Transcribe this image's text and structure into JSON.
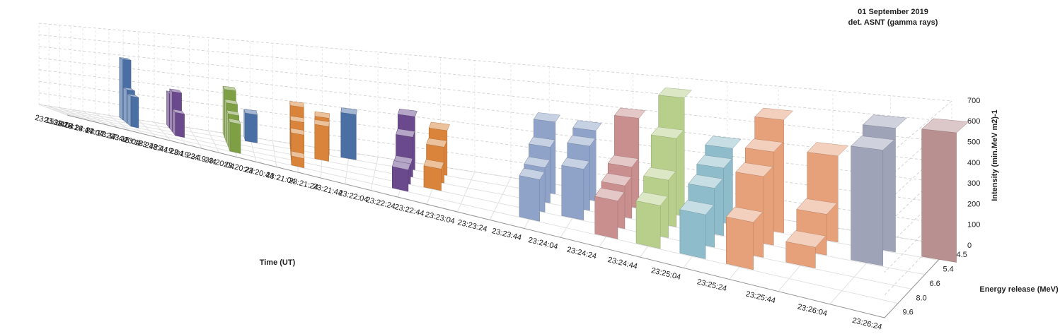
{
  "chart_data": {
    "type": "bar3d",
    "title": "01 September 2019",
    "subtitle": "det. ASNT (gamma rays)",
    "x_label": "Time (UT)",
    "y_label": "Intensity (min.MeV m2)-1",
    "z_label": "Energy release (MeV)",
    "categories": [
      "23:15:44",
      "23:16:04",
      "23:16:24",
      "23:16:44",
      "23:17:04",
      "23:17:24",
      "23:17:44",
      "23:18:04",
      "23:18:24",
      "23:18:44",
      "23:19:04",
      "23:19:24",
      "23:19:44",
      "23:20:04",
      "23:20:24",
      "23:20:44",
      "23:21:04",
      "23:21:24",
      "23:21:44",
      "23:22:04",
      "23:22:24",
      "23:22:44",
      "23:23:04",
      "23:23:24",
      "23:23:44",
      "23:24:04",
      "23:24:24",
      "23:24:44",
      "23:25:04",
      "23:25:24",
      "23:25:44",
      "23:26:04",
      "23:26:24"
    ],
    "colors": [
      null,
      null,
      null,
      null,
      null,
      null,
      null,
      "#4a6fa5",
      null,
      null,
      "#6a4a8c",
      null,
      null,
      "#7f9f45",
      "#4a6fa5",
      null,
      "#d9843a",
      "#d9843a",
      "#4a6fa5",
      null,
      "#6a4a8c",
      "#d9843a",
      null,
      null,
      "#8fa2c8",
      "#8fa2c8",
      "#c98f8f",
      "#b8cf8c",
      "#8fbccb",
      "#e6a07a",
      "#e6a07a",
      "#9ea3b8",
      "#b89090"
    ],
    "series": [
      {
        "name": "4.5",
        "values": [
          null,
          null,
          null,
          null,
          null,
          null,
          null,
          480,
          null,
          null,
          260,
          null,
          null,
          350,
          200,
          null,
          300,
          250,
          300,
          null,
          340,
          280,
          null,
          null,
          420,
          400,
          500,
          640,
          400,
          580,
          430,
          600,
          610
        ]
      },
      {
        "name": "5.4",
        "values": [
          null,
          null,
          null,
          null,
          null,
          null,
          null,
          260,
          null,
          null,
          300,
          null,
          null,
          280,
          null,
          null,
          230,
          230,
          null,
          null,
          250,
          220,
          null,
          null,
          320,
          360,
          280,
          470,
          350,
          470,
          200,
          550,
          null
        ]
      },
      {
        "name": "6.6",
        "values": [
          null,
          null,
          null,
          null,
          null,
          null,
          null,
          230,
          null,
          null,
          170,
          null,
          null,
          230,
          null,
          null,
          180,
          null,
          null,
          null,
          120,
          130,
          null,
          null,
          250,
          280,
          230,
          300,
          300,
          400,
          100,
          null,
          null
        ]
      },
      {
        "name": "8.0",
        "values": [
          null,
          null,
          null,
          null,
          null,
          null,
          null,
          null,
          null,
          null,
          null,
          null,
          null,
          200,
          null,
          null,
          60,
          null,
          null,
          null,
          130,
          null,
          null,
          null,
          230,
          null,
          200,
          220,
          220,
          230,
          null,
          null,
          null
        ]
      },
      {
        "name": "9.6",
        "values": [
          null,
          null,
          null,
          null,
          null,
          null,
          null,
          null,
          null,
          null,
          null,
          null,
          null,
          null,
          null,
          null,
          null,
          null,
          null,
          null,
          null,
          null,
          null,
          null,
          null,
          null,
          null,
          null,
          null,
          null,
          null,
          null,
          null
        ]
      }
    ],
    "ylim": [
      0,
      700
    ],
    "yticks": [
      0,
      100,
      200,
      300,
      400,
      500,
      600,
      700
    ],
    "grid": true
  }
}
